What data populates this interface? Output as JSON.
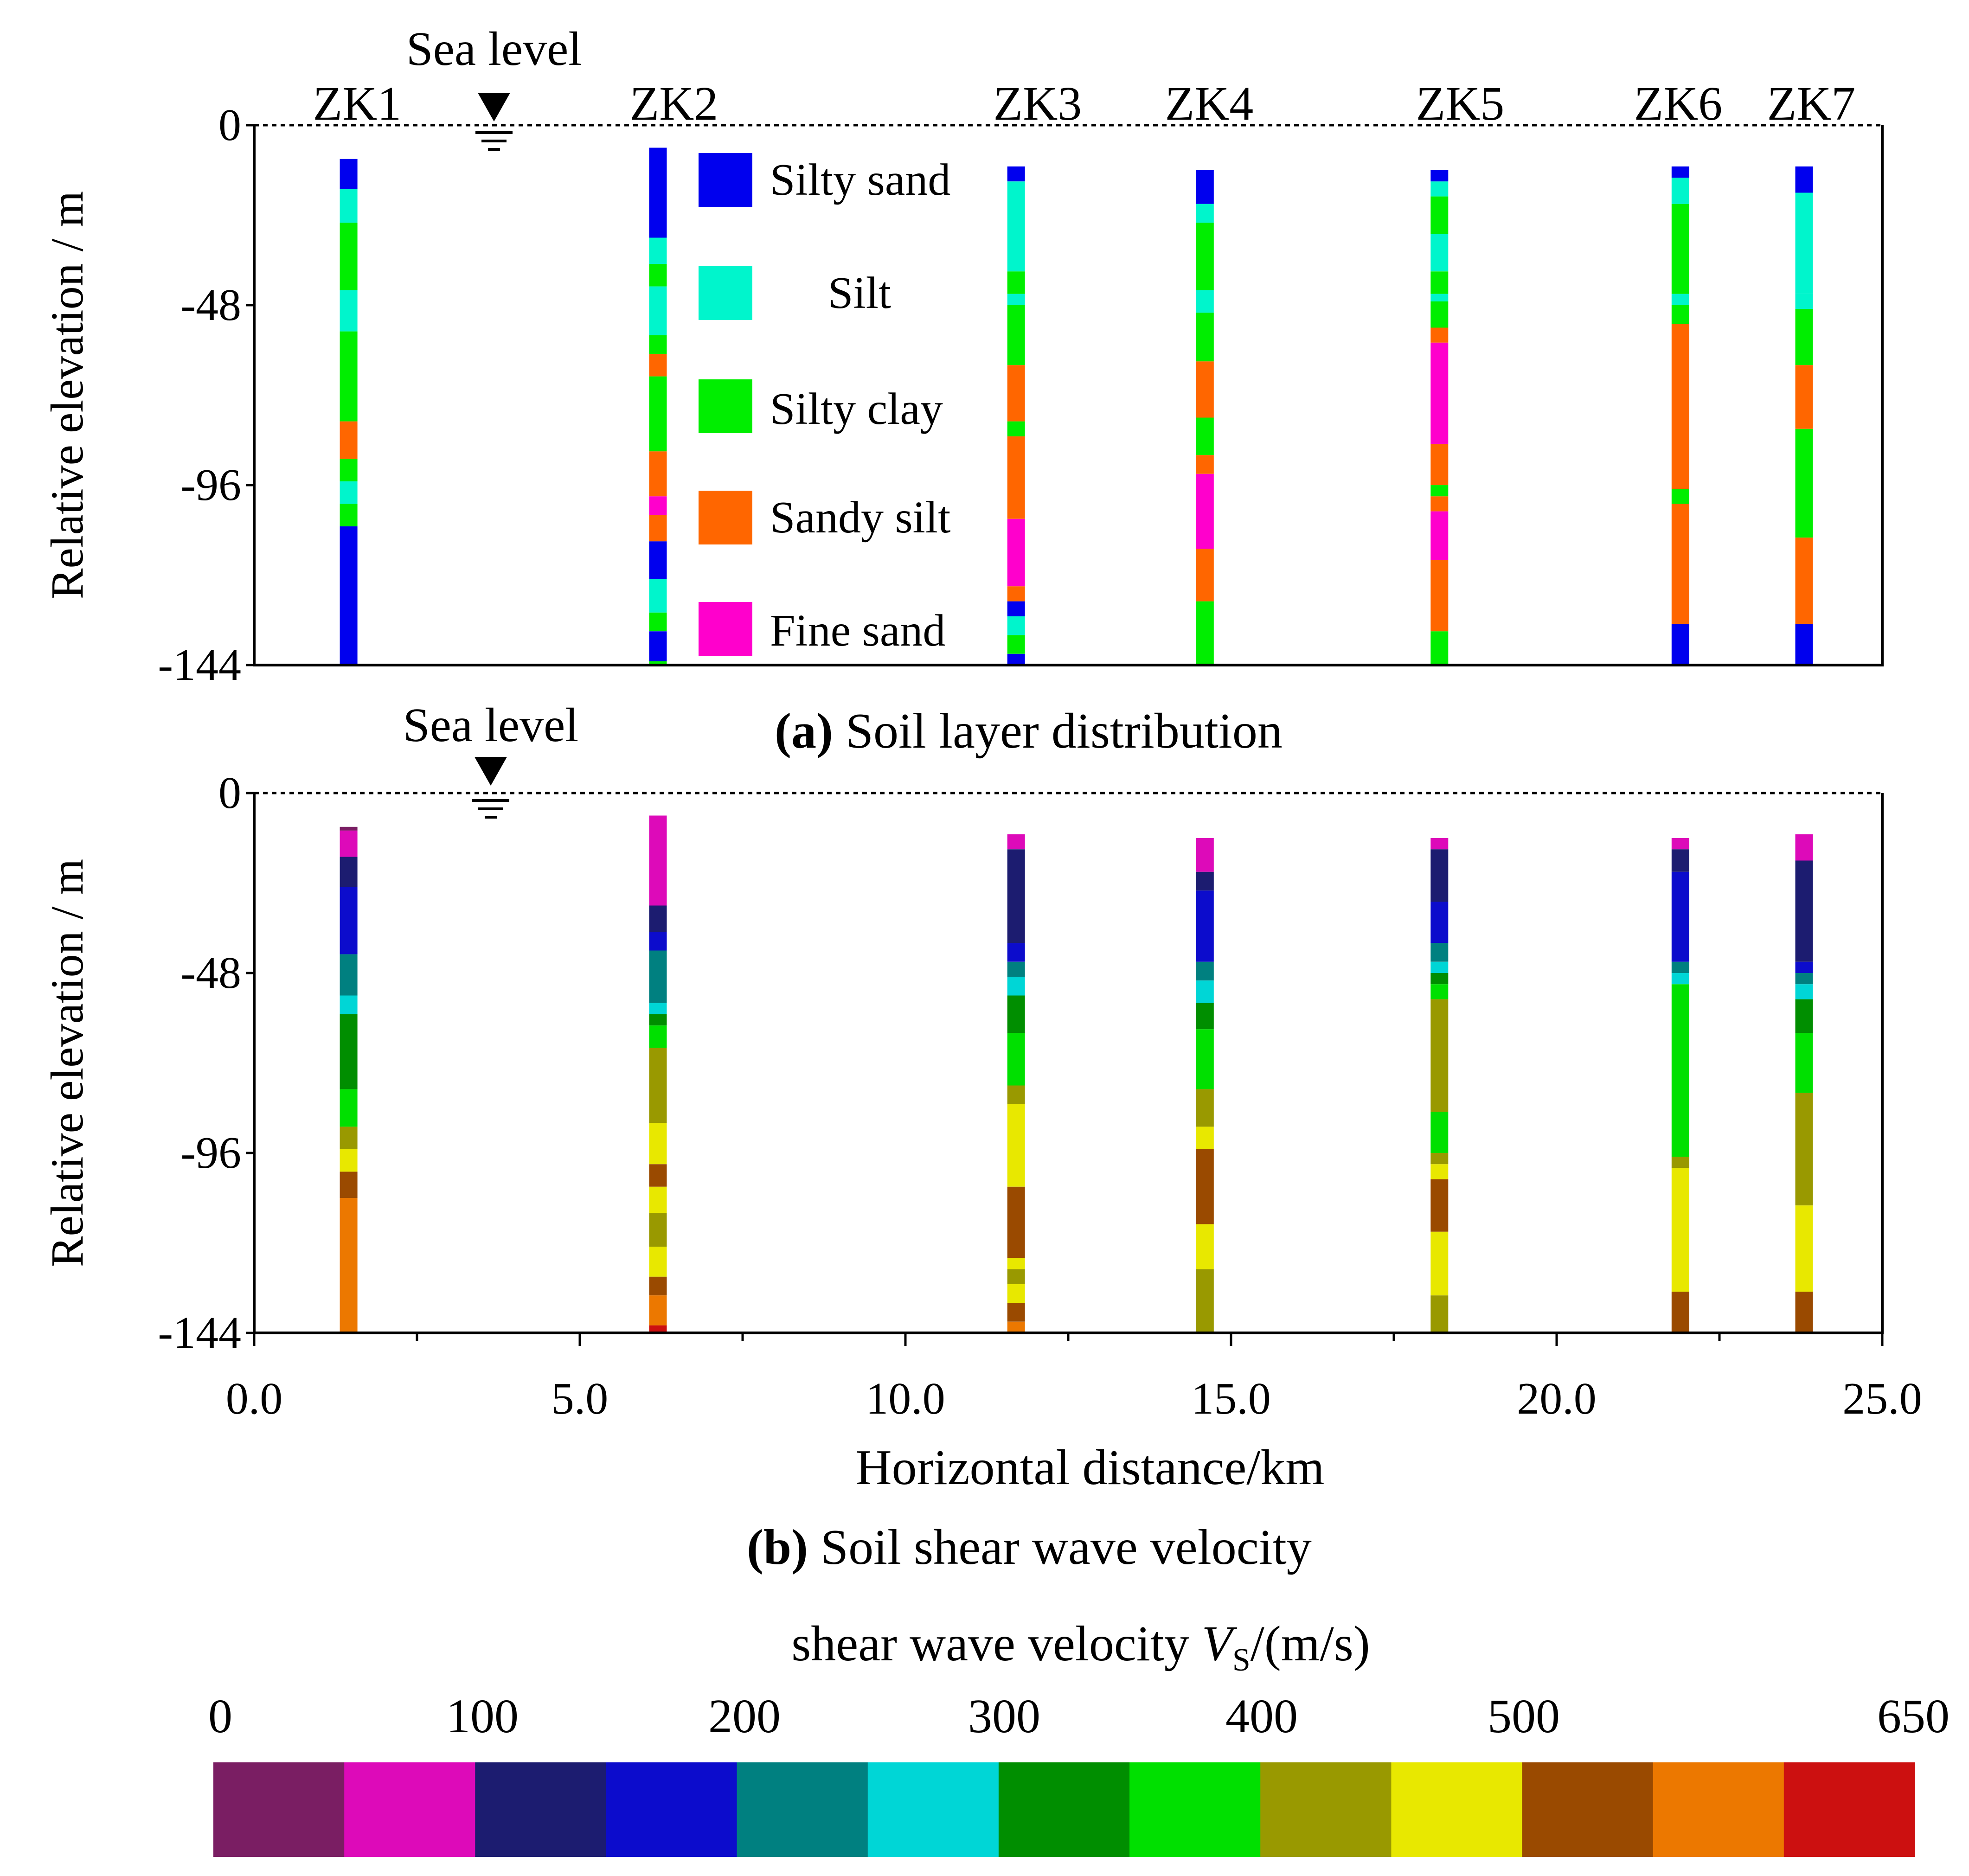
{
  "chart_data": [
    {
      "type": "stacked-bar-columns",
      "title_prefix": "(a)",
      "title_rest": " Soil layer distribution",
      "xlabel": "",
      "ylabel": "Relative elevation / m",
      "xlim": [
        0,
        25
      ],
      "ylim": [
        -144,
        0
      ],
      "yticks": [
        0,
        -48,
        -96,
        -144
      ],
      "ytick_labels": [
        "0",
        "-48",
        "-96",
        "-144"
      ],
      "sea_level_label": "Sea level",
      "sea_level_x": 3.6,
      "legend": [
        {
          "label": "Silty sand",
          "color": "#0000ee"
        },
        {
          "label": "Silt",
          "color": "#00f5cc"
        },
        {
          "label": "Silty clay",
          "color": "#00ee00"
        },
        {
          "label": "Sandy silt",
          "color": "#ff6600"
        },
        {
          "label": "Fine sand",
          "color": "#ff00cc"
        }
      ],
      "colors": {
        "silty_sand": "#0000ee",
        "silt": "#00f5cc",
        "silty_clay": "#00ee00",
        "sandy_silt": "#ff6600",
        "fine_sand": "#ff00cc"
      },
      "boreholes": [
        {
          "name": "ZK1",
          "x": 1.45,
          "layers": [
            [
              "silty_sand",
              9,
              17
            ],
            [
              "silt",
              17,
              26
            ],
            [
              "silty_clay",
              26,
              44
            ],
            [
              "silt",
              44,
              55
            ],
            [
              "silty_clay",
              55,
              79
            ],
            [
              "sandy_silt",
              79,
              89
            ],
            [
              "silty_clay",
              89,
              95
            ],
            [
              "silt",
              95,
              101
            ],
            [
              "silty_clay",
              101,
              107
            ],
            [
              "silty_sand",
              107,
              144
            ]
          ]
        },
        {
          "name": "ZK2",
          "x": 6.2,
          "layers": [
            [
              "silty_sand",
              6,
              30
            ],
            [
              "silt",
              30,
              37
            ],
            [
              "silty_clay",
              37,
              43
            ],
            [
              "silt",
              43,
              56
            ],
            [
              "silty_clay",
              56,
              61
            ],
            [
              "sandy_silt",
              61,
              67
            ],
            [
              "silty_clay",
              67,
              87
            ],
            [
              "sandy_silt",
              87,
              99
            ],
            [
              "fine_sand",
              99,
              104
            ],
            [
              "sandy_silt",
              104,
              111
            ],
            [
              "silty_sand",
              111,
              121
            ],
            [
              "silt",
              121,
              130
            ],
            [
              "silty_clay",
              130,
              135
            ],
            [
              "silty_sand",
              135,
              143
            ],
            [
              "silty_clay",
              143,
              144
            ]
          ]
        },
        {
          "name": "ZK3",
          "x": 11.7,
          "layers": [
            [
              "silty_sand",
              11,
              15
            ],
            [
              "silt",
              15,
              39
            ],
            [
              "silty_clay",
              39,
              45
            ],
            [
              "silt",
              45,
              48
            ],
            [
              "silty_clay",
              48,
              64
            ],
            [
              "sandy_silt",
              64,
              79
            ],
            [
              "silty_clay",
              79,
              83
            ],
            [
              "sandy_silt",
              83,
              105
            ],
            [
              "fine_sand",
              105,
              123
            ],
            [
              "sandy_silt",
              123,
              127
            ],
            [
              "silty_sand",
              127,
              131
            ],
            [
              "silt",
              131,
              136
            ],
            [
              "silty_clay",
              136,
              141
            ],
            [
              "silty_sand",
              141,
              144
            ]
          ]
        },
        {
          "name": "ZK4",
          "x": 14.6,
          "layers": [
            [
              "silty_sand",
              12,
              21
            ],
            [
              "silt",
              21,
              26
            ],
            [
              "silty_clay",
              26,
              44
            ],
            [
              "silt",
              44,
              50
            ],
            [
              "silty_clay",
              50,
              63
            ],
            [
              "sandy_silt",
              63,
              78
            ],
            [
              "silty_clay",
              78,
              88
            ],
            [
              "sandy_silt",
              88,
              93
            ],
            [
              "fine_sand",
              93,
              113
            ],
            [
              "sandy_silt",
              113,
              127
            ],
            [
              "silty_clay",
              127,
              144
            ]
          ]
        },
        {
          "name": "ZK5",
          "x": 18.2,
          "layers": [
            [
              "silty_sand",
              12,
              15
            ],
            [
              "silt",
              15,
              19
            ],
            [
              "silty_clay",
              19,
              29
            ],
            [
              "silt",
              29,
              39
            ],
            [
              "silty_clay",
              39,
              45
            ],
            [
              "silt",
              45,
              47
            ],
            [
              "silty_clay",
              47,
              54
            ],
            [
              "sandy_silt",
              54,
              58
            ],
            [
              "fine_sand",
              58,
              85
            ],
            [
              "sandy_silt",
              85,
              96
            ],
            [
              "silty_clay",
              96,
              99
            ],
            [
              "sandy_silt",
              99,
              103
            ],
            [
              "fine_sand",
              103,
              116
            ],
            [
              "sandy_silt",
              116,
              135
            ],
            [
              "silty_clay",
              135,
              144
            ]
          ]
        },
        {
          "name": "ZK6",
          "x": 21.9,
          "layers": [
            [
              "silty_sand",
              11,
              14
            ],
            [
              "silt",
              14,
              21
            ],
            [
              "silty_clay",
              21,
              45
            ],
            [
              "silt",
              45,
              48
            ],
            [
              "silty_clay",
              48,
              53
            ],
            [
              "sandy_silt",
              53,
              97
            ],
            [
              "silty_clay",
              97,
              101
            ],
            [
              "sandy_silt",
              101,
              133
            ],
            [
              "silty_sand",
              133,
              144
            ]
          ]
        },
        {
          "name": "ZK7",
          "x": 23.8,
          "layers": [
            [
              "silty_sand",
              11,
              18
            ],
            [
              "silt",
              18,
              45
            ],
            [
              "silt",
              45,
              49
            ],
            [
              "silty_clay",
              49,
              64
            ],
            [
              "sandy_silt",
              64,
              81
            ],
            [
              "silty_clay",
              81,
              110
            ],
            [
              "sandy_silt",
              110,
              133
            ],
            [
              "silty_sand",
              133,
              144
            ]
          ]
        }
      ]
    },
    {
      "type": "stacked-bar-columns",
      "title_prefix": "(b)",
      "title_rest": " Soil shear wave velocity",
      "xlabel": "Horizontal distance/km",
      "ylabel": "Relative elevation / m",
      "xlim": [
        0,
        25
      ],
      "ylim": [
        -144,
        0
      ],
      "xticks": [
        0,
        5,
        10,
        15,
        20,
        25
      ],
      "xtick_labels": [
        "0.0",
        "5.0",
        "10.0",
        "15.0",
        "20.0",
        "25.0"
      ],
      "yticks": [
        0,
        -48,
        -96,
        -144
      ],
      "ytick_labels": [
        "0",
        "-48",
        "-96",
        "-144"
      ],
      "sea_level_label": "Sea level",
      "sea_level_x": 3.6,
      "velocity_classes": [
        "#7a1e63",
        "#dd0ab9",
        "#1c1c70",
        "#0c0ccc",
        "#008080",
        "#00d6d6",
        "#008e00",
        "#00e000",
        "#999900",
        "#e8e800",
        "#9a4a00",
        "#ec7800",
        "#cc1010"
      ],
      "boreholes": [
        {
          "name": "ZK1",
          "x": 1.45,
          "layers": [
            [
              0,
              9,
              10
            ],
            [
              1,
              10,
              17
            ],
            [
              2,
              17,
              25
            ],
            [
              3,
              25,
              43
            ],
            [
              4,
              43,
              54
            ],
            [
              5,
              54,
              59
            ],
            [
              6,
              59,
              79
            ],
            [
              7,
              79,
              89
            ],
            [
              8,
              89,
              95
            ],
            [
              9,
              95,
              101
            ],
            [
              10,
              101,
              108
            ],
            [
              11,
              108,
              144
            ]
          ]
        },
        {
          "name": "ZK2",
          "x": 6.2,
          "layers": [
            [
              1,
              6,
              30
            ],
            [
              2,
              30,
              37
            ],
            [
              3,
              37,
              42
            ],
            [
              4,
              42,
              56
            ],
            [
              5,
              56,
              59
            ],
            [
              6,
              59,
              62
            ],
            [
              7,
              62,
              68
            ],
            [
              8,
              68,
              88
            ],
            [
              9,
              88,
              99
            ],
            [
              10,
              99,
              105
            ],
            [
              9,
              105,
              112
            ],
            [
              8,
              112,
              121
            ],
            [
              9,
              121,
              129
            ],
            [
              10,
              129,
              134
            ],
            [
              11,
              134,
              142
            ],
            [
              12,
              142,
              144
            ]
          ]
        },
        {
          "name": "ZK3",
          "x": 11.7,
          "layers": [
            [
              1,
              11,
              15
            ],
            [
              2,
              15,
              40
            ],
            [
              3,
              40,
              45
            ],
            [
              4,
              45,
              49
            ],
            [
              5,
              49,
              54
            ],
            [
              6,
              54,
              64
            ],
            [
              7,
              64,
              78
            ],
            [
              8,
              78,
              83
            ],
            [
              9,
              83,
              105
            ],
            [
              10,
              105,
              124
            ],
            [
              9,
              124,
              127
            ],
            [
              8,
              127,
              131
            ],
            [
              9,
              131,
              136
            ],
            [
              10,
              136,
              141
            ],
            [
              11,
              141,
              144
            ]
          ]
        },
        {
          "name": "ZK4",
          "x": 14.6,
          "layers": [
            [
              1,
              12,
              21
            ],
            [
              2,
              21,
              26
            ],
            [
              3,
              26,
              45
            ],
            [
              4,
              45,
              50
            ],
            [
              5,
              50,
              56
            ],
            [
              6,
              56,
              63
            ],
            [
              7,
              63,
              79
            ],
            [
              8,
              79,
              89
            ],
            [
              9,
              89,
              95
            ],
            [
              10,
              95,
              115
            ],
            [
              9,
              115,
              127
            ],
            [
              8,
              127,
              144
            ]
          ]
        },
        {
          "name": "ZK5",
          "x": 18.2,
          "layers": [
            [
              1,
              12,
              15
            ],
            [
              2,
              15,
              29
            ],
            [
              3,
              29,
              40
            ],
            [
              4,
              40,
              45
            ],
            [
              5,
              45,
              48
            ],
            [
              6,
              48,
              51
            ],
            [
              7,
              51,
              55
            ],
            [
              8,
              55,
              85
            ],
            [
              7,
              85,
              96
            ],
            [
              8,
              96,
              99
            ],
            [
              9,
              99,
              103
            ],
            [
              10,
              103,
              117
            ],
            [
              9,
              117,
              134
            ],
            [
              8,
              134,
              144
            ]
          ]
        },
        {
          "name": "ZK6",
          "x": 21.9,
          "layers": [
            [
              1,
              12,
              15
            ],
            [
              2,
              15,
              21
            ],
            [
              3,
              21,
              45
            ],
            [
              4,
              45,
              48
            ],
            [
              5,
              48,
              51
            ],
            [
              7,
              51,
              97
            ],
            [
              8,
              97,
              100
            ],
            [
              9,
              100,
              133
            ],
            [
              10,
              133,
              144
            ]
          ]
        },
        {
          "name": "ZK7",
          "x": 23.8,
          "layers": [
            [
              1,
              11,
              18
            ],
            [
              2,
              18,
              45
            ],
            [
              3,
              45,
              48
            ],
            [
              4,
              48,
              51
            ],
            [
              5,
              51,
              55
            ],
            [
              6,
              55,
              64
            ],
            [
              7,
              64,
              80
            ],
            [
              8,
              80,
              110
            ],
            [
              9,
              110,
              133
            ],
            [
              10,
              133,
              144
            ]
          ]
        }
      ]
    },
    {
      "type": "colorbar",
      "title_main": "shear wave velocity ",
      "title_symbol": "V",
      "title_sub": "S",
      "title_unit": "/(m/s)",
      "tick_labels": [
        "0",
        "100",
        "200",
        "300",
        "400",
        "500",
        "650"
      ],
      "tick_values": [
        0,
        100,
        200,
        300,
        400,
        500,
        650
      ],
      "colors": [
        "#7a1e63",
        "#dd0ab9",
        "#1c1c70",
        "#0c0ccc",
        "#008080",
        "#00d6d6",
        "#008e00",
        "#00e000",
        "#999900",
        "#e8e800",
        "#9a4a00",
        "#ec7800",
        "#cc1010"
      ]
    }
  ]
}
